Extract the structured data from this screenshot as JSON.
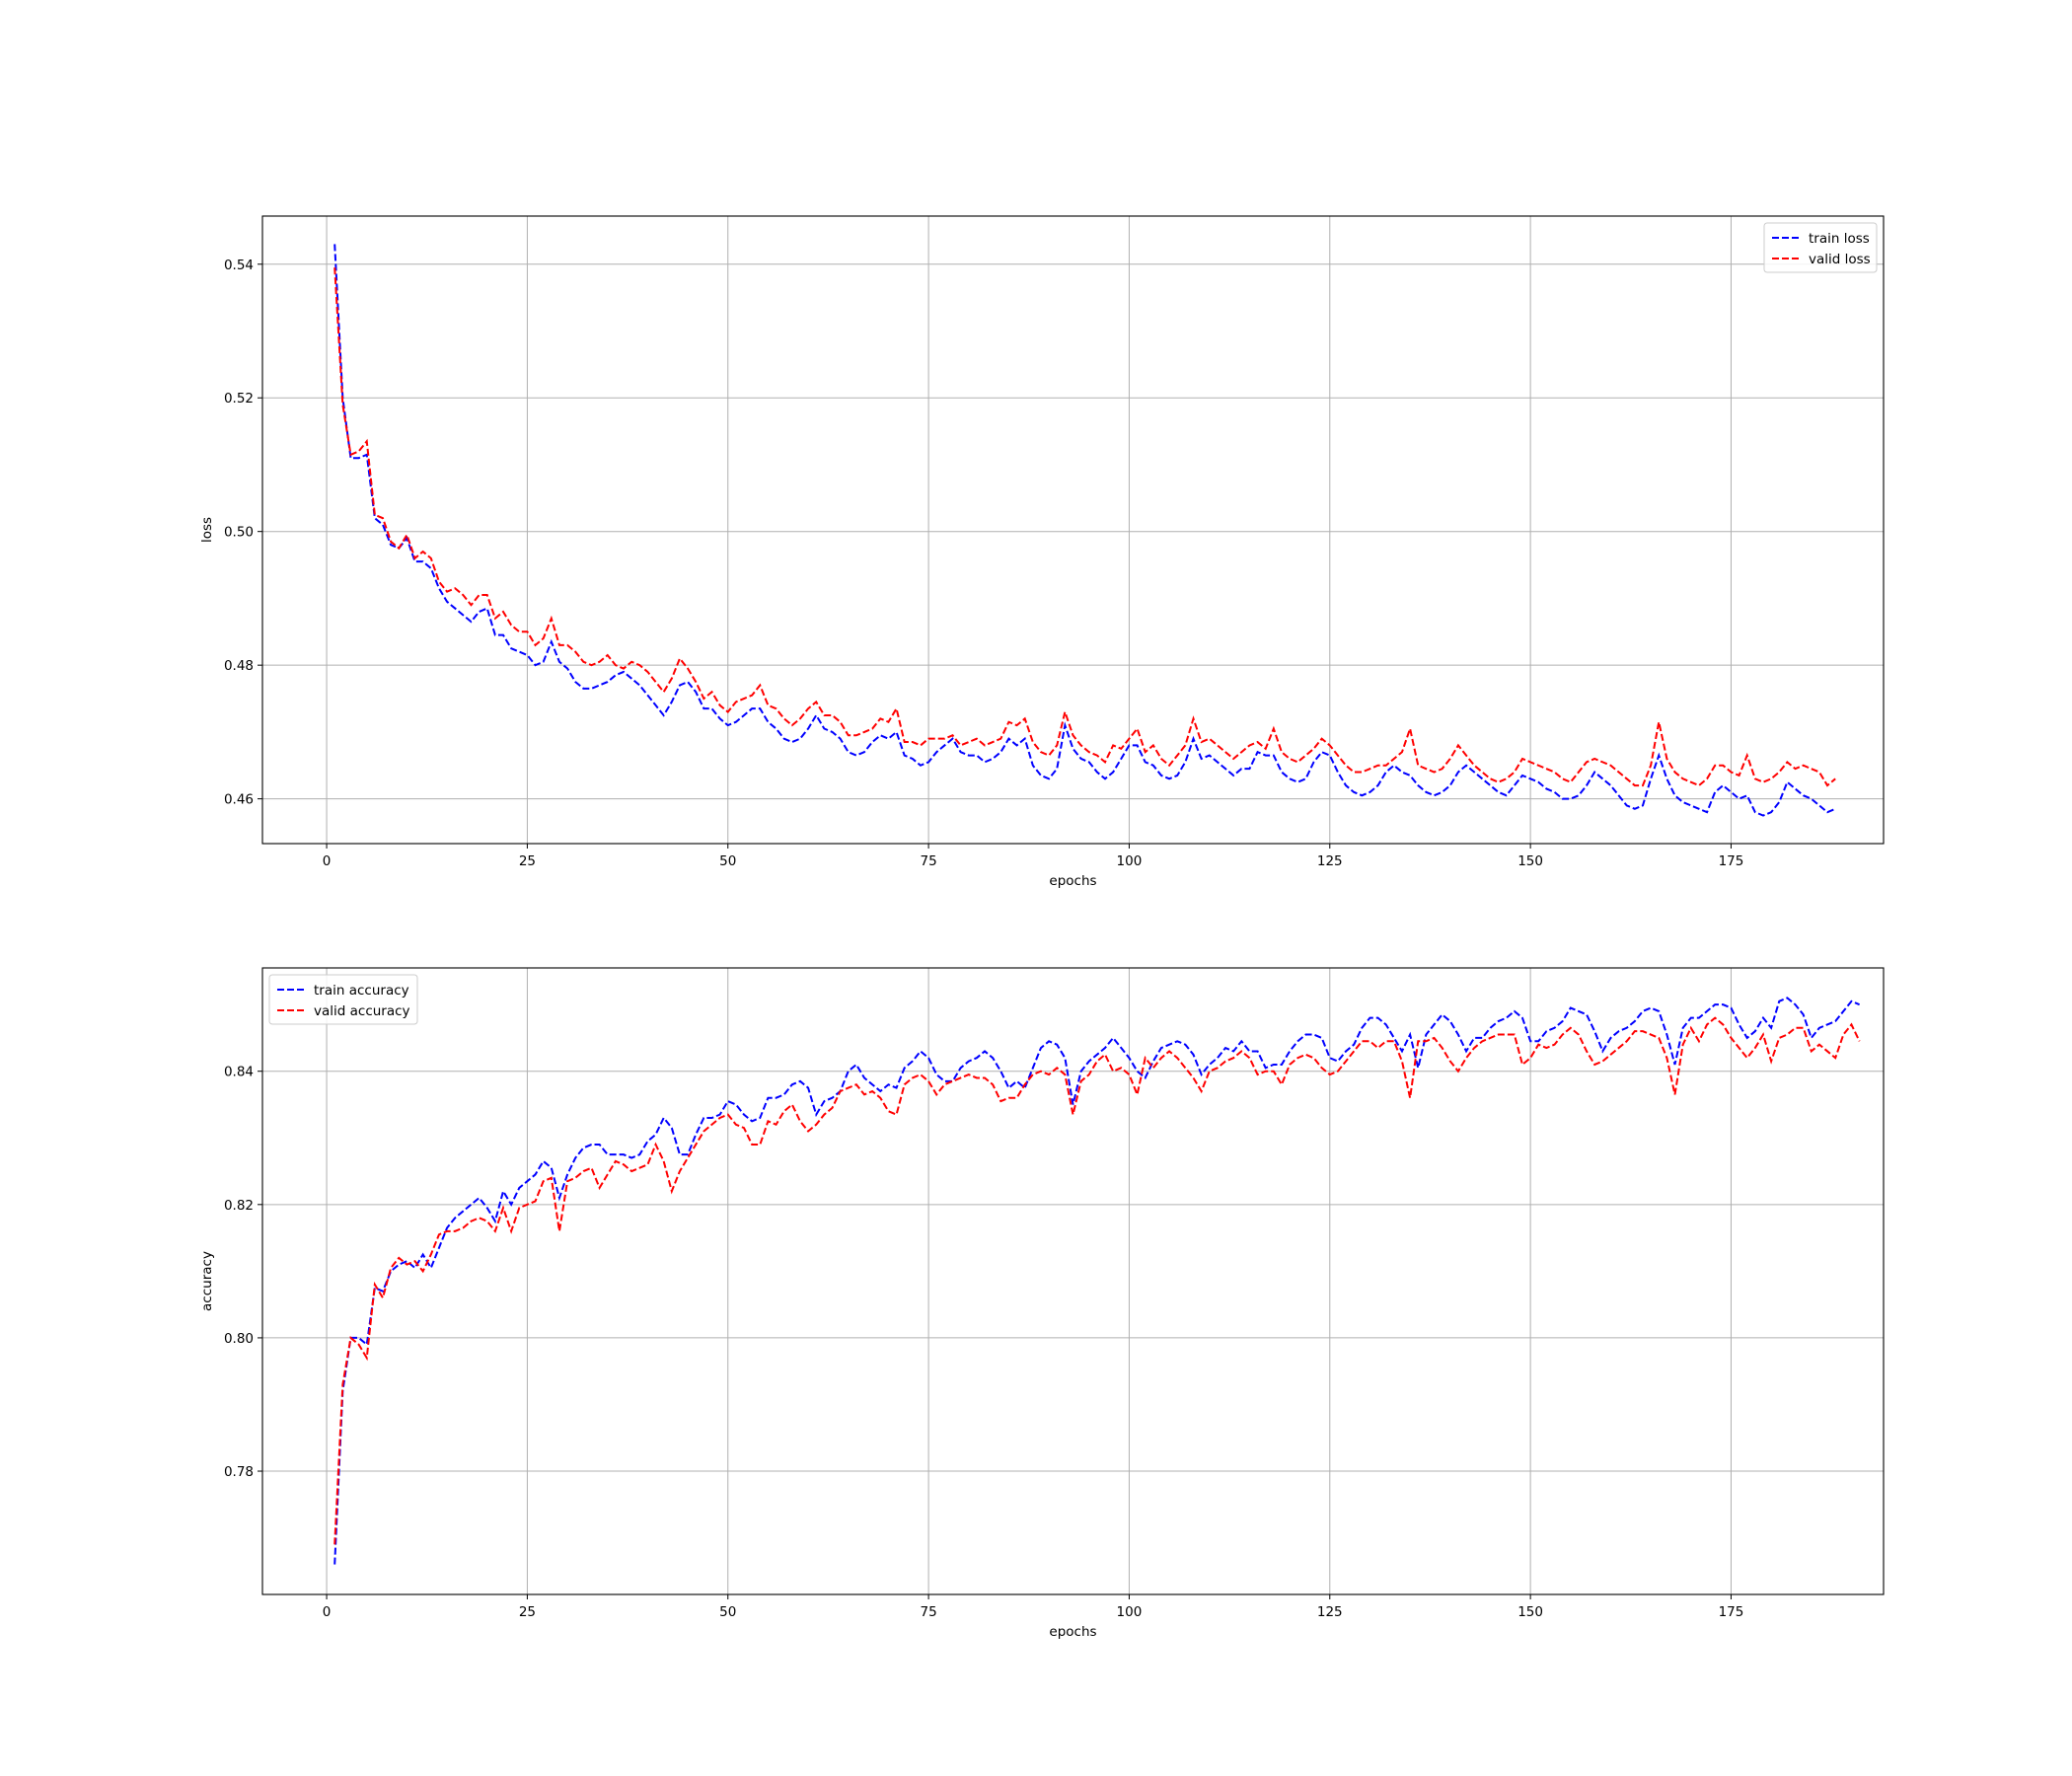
{
  "chart_data": [
    {
      "type": "line",
      "xlabel": "epochs",
      "ylabel": "loss",
      "xlim": [
        -8,
        194
      ],
      "ylim": [
        0.4533,
        0.5472
      ],
      "xticks": [
        0,
        25,
        50,
        75,
        100,
        125,
        150,
        175
      ],
      "yticks": [
        0.46,
        0.48,
        0.5,
        0.52,
        0.54
      ],
      "ytick_decimals": 2,
      "grid": true,
      "legend_position": "upper-right",
      "series": [
        {
          "name": "train loss",
          "color": "#0000ff",
          "x_start": 1,
          "values": [
            0.543,
            0.52,
            0.511,
            0.511,
            0.5115,
            0.502,
            0.501,
            0.498,
            0.4975,
            0.499,
            0.4955,
            0.4955,
            0.4945,
            0.4915,
            0.4895,
            0.4885,
            0.4875,
            0.4865,
            0.488,
            0.4885,
            0.4845,
            0.4845,
            0.4825,
            0.482,
            0.4815,
            0.48,
            0.4805,
            0.4835,
            0.4805,
            0.4795,
            0.4775,
            0.4765,
            0.4765,
            0.477,
            0.4775,
            0.4785,
            0.479,
            0.478,
            0.477,
            0.4755,
            0.474,
            0.4725,
            0.4745,
            0.477,
            0.4775,
            0.476,
            0.4735,
            0.4735,
            0.472,
            0.471,
            0.4715,
            0.4725,
            0.4735,
            0.4735,
            0.4715,
            0.4705,
            0.469,
            0.4685,
            0.469,
            0.4705,
            0.4725,
            0.4705,
            0.47,
            0.469,
            0.467,
            0.4665,
            0.467,
            0.4685,
            0.4695,
            0.469,
            0.47,
            0.4665,
            0.466,
            0.465,
            0.4655,
            0.467,
            0.468,
            0.469,
            0.467,
            0.4665,
            0.4665,
            0.4655,
            0.466,
            0.467,
            0.469,
            0.468,
            0.469,
            0.465,
            0.4635,
            0.463,
            0.4645,
            0.471,
            0.4675,
            0.466,
            0.4655,
            0.464,
            0.463,
            0.464,
            0.466,
            0.468,
            0.468,
            0.4655,
            0.465,
            0.4635,
            0.463,
            0.4635,
            0.4655,
            0.469,
            0.466,
            0.4665,
            0.4655,
            0.4645,
            0.4635,
            0.4645,
            0.4645,
            0.467,
            0.4665,
            0.4665,
            0.464,
            0.463,
            0.4625,
            0.463,
            0.4655,
            0.467,
            0.4665,
            0.464,
            0.462,
            0.461,
            0.4605,
            0.461,
            0.462,
            0.464,
            0.465,
            0.464,
            0.4635,
            0.462,
            0.461,
            0.4605,
            0.461,
            0.462,
            0.464,
            0.465,
            0.464,
            0.463,
            0.462,
            0.461,
            0.4605,
            0.462,
            0.4635,
            0.463,
            0.4625,
            0.4615,
            0.461,
            0.46,
            0.46,
            0.4605,
            0.462,
            0.464,
            0.463,
            0.462,
            0.4605,
            0.459,
            0.4585,
            0.459,
            0.463,
            0.4665,
            0.463,
            0.4605,
            0.4595,
            0.459,
            0.4585,
            0.458,
            0.461,
            0.462,
            0.461,
            0.46,
            0.4605,
            0.458,
            0.4575,
            0.458,
            0.4595,
            0.4625,
            0.4615,
            0.4605,
            0.46,
            0.459,
            0.458,
            0.4585
          ]
        },
        {
          "name": "valid loss",
          "color": "#ff0000",
          "x_start": 1,
          "values": [
            0.5395,
            0.519,
            0.5115,
            0.512,
            0.5135,
            0.5025,
            0.502,
            0.4985,
            0.4975,
            0.4995,
            0.496,
            0.497,
            0.496,
            0.4925,
            0.491,
            0.4915,
            0.4905,
            0.489,
            0.4905,
            0.4905,
            0.487,
            0.488,
            0.486,
            0.485,
            0.485,
            0.483,
            0.484,
            0.487,
            0.483,
            0.483,
            0.482,
            0.4805,
            0.48,
            0.4805,
            0.4815,
            0.48,
            0.4795,
            0.4805,
            0.48,
            0.479,
            0.4775,
            0.476,
            0.478,
            0.481,
            0.4795,
            0.4775,
            0.475,
            0.476,
            0.474,
            0.473,
            0.4745,
            0.475,
            0.4755,
            0.477,
            0.474,
            0.4735,
            0.472,
            0.471,
            0.472,
            0.4735,
            0.4745,
            0.4725,
            0.4725,
            0.4715,
            0.4695,
            0.4695,
            0.47,
            0.4705,
            0.472,
            0.4715,
            0.4735,
            0.4685,
            0.4685,
            0.468,
            0.469,
            0.469,
            0.469,
            0.4695,
            0.468,
            0.4685,
            0.469,
            0.468,
            0.4685,
            0.469,
            0.4715,
            0.471,
            0.472,
            0.4685,
            0.467,
            0.4665,
            0.468,
            0.473,
            0.4695,
            0.468,
            0.467,
            0.4665,
            0.4655,
            0.468,
            0.4675,
            0.469,
            0.4705,
            0.467,
            0.468,
            0.466,
            0.465,
            0.4665,
            0.468,
            0.472,
            0.4685,
            0.469,
            0.468,
            0.467,
            0.466,
            0.467,
            0.468,
            0.4685,
            0.4675,
            0.4705,
            0.467,
            0.466,
            0.4655,
            0.4665,
            0.4675,
            0.469,
            0.468,
            0.4665,
            0.465,
            0.464,
            0.464,
            0.4645,
            0.465,
            0.465,
            0.466,
            0.467,
            0.4705,
            0.465,
            0.4645,
            0.464,
            0.4645,
            0.466,
            0.468,
            0.4665,
            0.465,
            0.464,
            0.463,
            0.4625,
            0.463,
            0.464,
            0.466,
            0.4655,
            0.465,
            0.4645,
            0.464,
            0.463,
            0.4625,
            0.464,
            0.4655,
            0.466,
            0.4655,
            0.465,
            0.464,
            0.463,
            0.462,
            0.462,
            0.465,
            0.4715,
            0.466,
            0.464,
            0.463,
            0.4625,
            0.462,
            0.463,
            0.465,
            0.465,
            0.464,
            0.4635,
            0.4665,
            0.463,
            0.4625,
            0.463,
            0.464,
            0.4655,
            0.4645,
            0.465,
            0.4645,
            0.464,
            0.462,
            0.463
          ]
        }
      ]
    },
    {
      "type": "line",
      "xlabel": "epochs",
      "ylabel": "accuracy",
      "xlim": [
        -8,
        194
      ],
      "ylim": [
        0.7615,
        0.8555
      ],
      "xticks": [
        0,
        25,
        50,
        75,
        100,
        125,
        150,
        175
      ],
      "yticks": [
        0.78,
        0.8,
        0.82,
        0.84
      ],
      "ytick_decimals": 2,
      "grid": true,
      "legend_position": "upper-left",
      "series": [
        {
          "name": "train accuracy",
          "color": "#0000ff",
          "x_start": 1,
          "values": [
            0.766,
            0.792,
            0.8,
            0.8,
            0.799,
            0.8075,
            0.807,
            0.81,
            0.811,
            0.8115,
            0.8105,
            0.8125,
            0.8105,
            0.8135,
            0.8165,
            0.818,
            0.819,
            0.82,
            0.821,
            0.8195,
            0.8175,
            0.822,
            0.82,
            0.8225,
            0.8235,
            0.8245,
            0.8265,
            0.8255,
            0.821,
            0.8245,
            0.827,
            0.8285,
            0.829,
            0.829,
            0.8275,
            0.8275,
            0.8275,
            0.827,
            0.8275,
            0.8295,
            0.8305,
            0.833,
            0.8315,
            0.8275,
            0.8275,
            0.8305,
            0.833,
            0.833,
            0.8335,
            0.8355,
            0.835,
            0.8335,
            0.8325,
            0.833,
            0.836,
            0.836,
            0.8365,
            0.838,
            0.8385,
            0.8375,
            0.8335,
            0.8355,
            0.836,
            0.837,
            0.84,
            0.841,
            0.839,
            0.838,
            0.837,
            0.838,
            0.8375,
            0.8405,
            0.8415,
            0.843,
            0.842,
            0.8395,
            0.8385,
            0.8385,
            0.8405,
            0.8415,
            0.842,
            0.843,
            0.842,
            0.84,
            0.8375,
            0.8385,
            0.8375,
            0.8405,
            0.8435,
            0.8445,
            0.844,
            0.842,
            0.835,
            0.84,
            0.8415,
            0.8425,
            0.8435,
            0.845,
            0.8435,
            0.842,
            0.84,
            0.839,
            0.8415,
            0.8435,
            0.844,
            0.8445,
            0.844,
            0.8425,
            0.8395,
            0.841,
            0.842,
            0.8435,
            0.843,
            0.8445,
            0.843,
            0.843,
            0.8405,
            0.841,
            0.841,
            0.843,
            0.8445,
            0.8455,
            0.8455,
            0.845,
            0.842,
            0.8415,
            0.843,
            0.844,
            0.8465,
            0.848,
            0.848,
            0.847,
            0.845,
            0.843,
            0.8455,
            0.8405,
            0.8455,
            0.847,
            0.8485,
            0.8475,
            0.8455,
            0.843,
            0.845,
            0.845,
            0.8465,
            0.8475,
            0.848,
            0.849,
            0.848,
            0.8445,
            0.8445,
            0.846,
            0.8465,
            0.8475,
            0.8495,
            0.849,
            0.8485,
            0.846,
            0.843,
            0.845,
            0.846,
            0.8465,
            0.8475,
            0.849,
            0.8495,
            0.849,
            0.8455,
            0.841,
            0.8465,
            0.848,
            0.848,
            0.849,
            0.85,
            0.85,
            0.8495,
            0.847,
            0.845,
            0.846,
            0.848,
            0.8465,
            0.8505,
            0.851,
            0.85,
            0.8485,
            0.845,
            0.8465,
            0.847,
            0.8475,
            0.849,
            0.8505,
            0.85
          ]
        },
        {
          "name": "valid accuracy",
          "color": "#ff0000",
          "x_start": 1,
          "values": [
            0.769,
            0.793,
            0.8,
            0.799,
            0.797,
            0.808,
            0.806,
            0.8105,
            0.812,
            0.811,
            0.8115,
            0.81,
            0.8125,
            0.8155,
            0.816,
            0.816,
            0.8165,
            0.8175,
            0.818,
            0.8175,
            0.816,
            0.8195,
            0.816,
            0.8195,
            0.82,
            0.8205,
            0.8235,
            0.824,
            0.816,
            0.8235,
            0.824,
            0.825,
            0.8255,
            0.8225,
            0.8245,
            0.8265,
            0.826,
            0.825,
            0.8255,
            0.826,
            0.829,
            0.8265,
            0.822,
            0.825,
            0.827,
            0.829,
            0.831,
            0.832,
            0.833,
            0.8335,
            0.832,
            0.8315,
            0.829,
            0.829,
            0.8325,
            0.832,
            0.834,
            0.835,
            0.8325,
            0.831,
            0.832,
            0.8335,
            0.8345,
            0.837,
            0.8375,
            0.838,
            0.8365,
            0.837,
            0.836,
            0.834,
            0.8335,
            0.838,
            0.839,
            0.8395,
            0.8385,
            0.8365,
            0.838,
            0.8385,
            0.839,
            0.8395,
            0.839,
            0.839,
            0.838,
            0.8355,
            0.836,
            0.836,
            0.838,
            0.8395,
            0.84,
            0.8395,
            0.8405,
            0.8395,
            0.8335,
            0.8385,
            0.8395,
            0.8415,
            0.8425,
            0.84,
            0.8405,
            0.8395,
            0.8365,
            0.842,
            0.8405,
            0.842,
            0.843,
            0.842,
            0.8405,
            0.839,
            0.837,
            0.84,
            0.8405,
            0.8415,
            0.842,
            0.843,
            0.842,
            0.8395,
            0.84,
            0.84,
            0.838,
            0.841,
            0.842,
            0.8425,
            0.842,
            0.8405,
            0.8395,
            0.84,
            0.8415,
            0.843,
            0.8445,
            0.8445,
            0.8435,
            0.8445,
            0.8445,
            0.8415,
            0.836,
            0.8445,
            0.8445,
            0.845,
            0.8435,
            0.8415,
            0.84,
            0.842,
            0.8435,
            0.8445,
            0.845,
            0.8455,
            0.8455,
            0.8455,
            0.841,
            0.842,
            0.844,
            0.8435,
            0.844,
            0.8455,
            0.8465,
            0.8455,
            0.843,
            0.841,
            0.8415,
            0.8425,
            0.8435,
            0.8445,
            0.846,
            0.846,
            0.8455,
            0.845,
            0.842,
            0.8365,
            0.844,
            0.8465,
            0.8445,
            0.847,
            0.848,
            0.847,
            0.845,
            0.8435,
            0.842,
            0.8435,
            0.8455,
            0.8415,
            0.845,
            0.8455,
            0.8465,
            0.8465,
            0.843,
            0.844,
            0.843,
            0.842,
            0.8455,
            0.847,
            0.8445
          ]
        }
      ]
    }
  ]
}
